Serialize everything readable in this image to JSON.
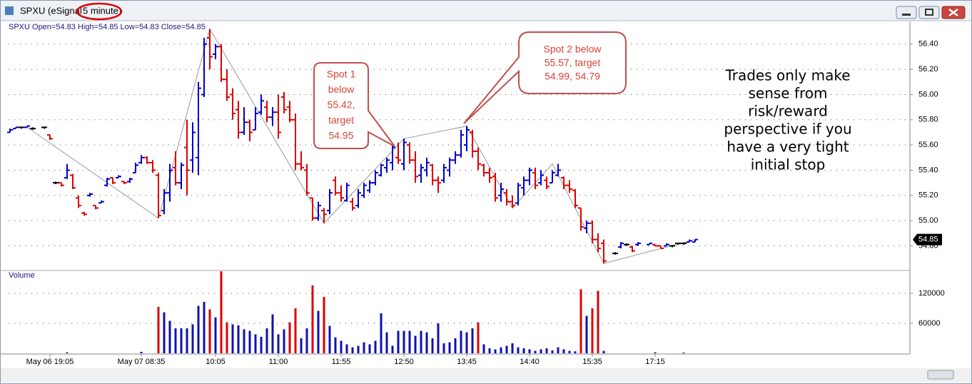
{
  "window": {
    "title": "SPXU (eSignal",
    "title_highlight": "5 minute)"
  },
  "annotations": {
    "spot1": [
      "Spot 1",
      "below",
      "55.42,",
      "target",
      "54.95"
    ],
    "spot2": [
      "Spot 2 below",
      "55.57, target",
      "54.99, 54.79"
    ],
    "note": [
      "Trades only make",
      "sense from",
      "risk/reward",
      "perspective if you",
      "have a very tight",
      "initial stop"
    ]
  },
  "chart_data": [
    {
      "type": "ohlc",
      "header": "SPXU  Open=54.83  High=54.85  Low=54.83  Close=54.85",
      "categories": [
        null,
        null,
        null,
        null,
        null,
        null,
        null,
        "May 06 19:05",
        null,
        null,
        null,
        null,
        null,
        null,
        null,
        null,
        null,
        null,
        null,
        null,
        null,
        null,
        null,
        "May 07 08:35",
        null,
        null,
        null,
        null,
        null,
        null,
        null,
        null,
        null,
        null,
        null,
        null,
        "10:05",
        null,
        null,
        null,
        null,
        null,
        null,
        null,
        null,
        null,
        null,
        "11:00",
        null,
        null,
        null,
        null,
        null,
        null,
        null,
        null,
        null,
        null,
        "11:55",
        null,
        null,
        null,
        null,
        null,
        null,
        null,
        null,
        null,
        null,
        "12:50",
        null,
        null,
        null,
        null,
        null,
        null,
        null,
        null,
        null,
        null,
        "13:45",
        null,
        null,
        null,
        null,
        null,
        null,
        null,
        null,
        null,
        null,
        "14:40",
        null,
        null,
        null,
        null,
        null,
        null,
        null,
        null,
        null,
        null,
        "15:35",
        null,
        null,
        null,
        null,
        null,
        null,
        null,
        null,
        null,
        null,
        "17:15",
        null,
        null,
        null,
        null,
        null,
        null,
        null
      ],
      "open": [
        55.7,
        55.73,
        55.74,
        55.74,
        55.73,
        null,
        55.74,
        55.68,
        55.3,
        55.3,
        55.34,
        55.36,
        55.18,
        55.06,
        55.2,
        55.12,
        55.14,
        55.28,
        55.34,
        55.34,
        55.31,
        55.31,
        55.38,
        55.46,
        55.5,
        55.46,
        55.36,
        55.08,
        55.22,
        55.42,
        55.3,
        55.58,
        55.48,
        55.5,
        56.0,
        56.45,
        56.32,
        56.38,
        56.12,
        56.0,
        55.88,
        55.7,
        55.78,
        55.72,
        55.86,
        55.9,
        55.82,
        55.86,
        55.98,
        55.9,
        55.8,
        55.45,
        55.4,
        55.18,
        55.02,
        55.08,
        55.08,
        55.32,
        55.22,
        55.16,
        55.15,
        55.12,
        55.2,
        55.24,
        55.3,
        55.36,
        55.42,
        55.46,
        55.5,
        55.45,
        55.6,
        55.48,
        55.36,
        55.4,
        55.44,
        55.32,
        55.32,
        55.4,
        55.48,
        55.52,
        55.6,
        55.7,
        55.55,
        55.44,
        55.38,
        55.35,
        55.2,
        55.22,
        55.15,
        55.14,
        55.26,
        55.32,
        55.38,
        55.3,
        55.32,
        55.3,
        55.36,
        55.34,
        55.28,
        55.24,
        55.1,
        54.94,
        54.98,
        54.85,
        54.82,
        null,
        54.74,
        54.79,
        54.81,
        54.79,
        54.81,
        null,
        54.81,
        54.81,
        54.8,
        54.8,
        54.8,
        54.82,
        54.82,
        54.83,
        54.83
      ],
      "high": [
        55.73,
        55.74,
        55.74,
        55.75,
        55.74,
        null,
        55.74,
        55.68,
        55.31,
        55.3,
        55.45,
        55.37,
        55.2,
        55.07,
        55.22,
        55.12,
        55.16,
        55.34,
        55.34,
        55.36,
        55.31,
        55.34,
        55.46,
        55.52,
        55.51,
        55.48,
        55.38,
        55.25,
        55.45,
        55.55,
        55.46,
        55.8,
        55.78,
        56.1,
        56.45,
        56.52,
        56.4,
        56.4,
        56.2,
        56.05,
        55.95,
        55.9,
        55.8,
        55.9,
        56.0,
        55.95,
        55.9,
        56.0,
        56.02,
        55.95,
        55.85,
        55.55,
        55.45,
        55.18,
        55.15,
        55.1,
        55.25,
        55.35,
        55.28,
        55.3,
        55.18,
        55.25,
        55.3,
        55.32,
        55.4,
        55.45,
        55.5,
        55.6,
        55.62,
        55.65,
        55.62,
        55.55,
        55.45,
        55.5,
        55.45,
        55.35,
        55.45,
        55.5,
        55.55,
        55.72,
        55.75,
        55.72,
        55.58,
        55.45,
        55.42,
        55.38,
        55.3,
        55.25,
        55.2,
        55.3,
        55.35,
        55.42,
        55.42,
        55.4,
        55.35,
        55.4,
        55.45,
        55.35,
        55.32,
        55.25,
        55.1,
        55.0,
        55.0,
        54.9,
        54.85,
        null,
        54.75,
        54.83,
        54.82,
        54.8,
        54.83,
        null,
        54.82,
        54.81,
        54.8,
        54.82,
        54.8,
        54.82,
        54.82,
        54.85,
        54.85
      ],
      "low": [
        55.7,
        55.73,
        55.74,
        55.74,
        55.72,
        null,
        55.74,
        55.64,
        55.29,
        55.27,
        55.33,
        55.25,
        55.1,
        55.04,
        55.19,
        55.09,
        55.14,
        55.27,
        55.29,
        55.34,
        55.29,
        55.3,
        55.38,
        55.45,
        55.45,
        55.38,
        55.02,
        55.05,
        55.15,
        55.28,
        55.25,
        55.2,
        55.38,
        55.36,
        55.98,
        56.2,
        56.28,
        56.1,
        55.95,
        55.8,
        55.65,
        55.68,
        55.63,
        55.72,
        55.84,
        55.78,
        55.75,
        55.65,
        55.85,
        55.78,
        55.4,
        55.4,
        55.2,
        55.0,
        55.0,
        54.98,
        55.05,
        55.2,
        55.15,
        55.15,
        55.08,
        55.1,
        55.18,
        55.22,
        55.28,
        55.35,
        55.38,
        55.4,
        55.45,
        55.4,
        55.45,
        55.3,
        55.3,
        55.35,
        55.28,
        55.22,
        55.3,
        55.35,
        55.45,
        55.5,
        55.55,
        55.5,
        55.4,
        55.35,
        55.3,
        55.15,
        55.15,
        55.12,
        55.1,
        55.12,
        55.2,
        55.28,
        55.25,
        55.28,
        55.25,
        55.3,
        55.35,
        55.25,
        55.22,
        55.1,
        54.92,
        54.9,
        54.82,
        54.75,
        54.66,
        null,
        54.73,
        54.78,
        54.8,
        54.75,
        54.8,
        null,
        54.81,
        54.8,
        54.78,
        54.8,
        54.8,
        54.82,
        54.82,
        54.83,
        54.83
      ],
      "close": [
        55.72,
        55.74,
        55.74,
        55.75,
        55.73,
        null,
        55.74,
        55.65,
        55.3,
        55.28,
        55.4,
        55.26,
        55.12,
        55.05,
        55.21,
        55.1,
        55.15,
        55.33,
        55.3,
        55.35,
        55.3,
        55.33,
        55.44,
        55.5,
        55.46,
        55.4,
        55.04,
        55.22,
        55.4,
        55.3,
        55.44,
        55.4,
        55.7,
        56.05,
        56.4,
        56.3,
        56.38,
        56.12,
        55.98,
        55.85,
        55.7,
        55.78,
        55.7,
        55.85,
        55.95,
        55.82,
        55.86,
        55.7,
        55.88,
        55.8,
        55.45,
        55.42,
        55.22,
        55.02,
        55.12,
        55.05,
        55.22,
        55.22,
        55.18,
        55.28,
        55.1,
        55.22,
        55.28,
        55.3,
        55.38,
        55.44,
        55.48,
        55.58,
        55.48,
        55.62,
        55.48,
        55.35,
        55.42,
        55.46,
        55.32,
        55.3,
        55.42,
        55.48,
        55.52,
        55.68,
        55.72,
        55.55,
        55.45,
        55.38,
        55.34,
        55.18,
        55.25,
        55.15,
        55.12,
        55.28,
        55.32,
        55.4,
        55.28,
        55.36,
        55.27,
        55.38,
        55.4,
        55.28,
        55.25,
        55.12,
        54.95,
        54.98,
        54.85,
        54.78,
        54.68,
        null,
        54.74,
        54.82,
        54.81,
        54.76,
        54.82,
        null,
        54.82,
        54.8,
        54.78,
        54.81,
        54.8,
        54.82,
        54.82,
        54.84,
        54.85
      ],
      "up_color": "#0000cc",
      "down_color": "#dd0000",
      "flat_color": "#000000",
      "ylim": [
        54.61,
        56.58
      ],
      "yticks": [
        {
          "value": 54.8,
          "label": "54.80"
        },
        {
          "value": 55.0,
          "label": "55.00"
        },
        {
          "value": 55.2,
          "label": "55.20"
        },
        {
          "value": 55.4,
          "label": "55.40"
        },
        {
          "value": 55.6,
          "label": "55.60"
        },
        {
          "value": 55.8,
          "label": "55.80"
        },
        {
          "value": 56.0,
          "label": "56.00"
        },
        {
          "value": 56.2,
          "label": "56.20"
        },
        {
          "value": 56.4,
          "label": "56.40"
        }
      ],
      "grid": true,
      "last_value": 54.85,
      "zigzag": {
        "x": [
          3,
          26,
          35,
          55,
          69,
          80,
          88,
          95,
          104,
          120
        ],
        "values": [
          55.74,
          55.02,
          56.52,
          54.98,
          55.65,
          55.75,
          55.1,
          55.45,
          54.66,
          54.85
        ],
        "color": "#999999"
      }
    },
    {
      "type": "bar",
      "title": "Volume",
      "color": "#1010b0",
      "values": [
        null,
        null,
        null,
        null,
        null,
        null,
        null,
        null,
        null,
        null,
        2000,
        null,
        null,
        null,
        null,
        null,
        null,
        null,
        null,
        null,
        null,
        null,
        null,
        3000,
        null,
        null,
        93000,
        82000,
        65000,
        50000,
        50000,
        50000,
        58000,
        95000,
        103000,
        88000,
        72000,
        164000,
        62000,
        58000,
        56000,
        48000,
        45000,
        38000,
        33000,
        50000,
        78000,
        38000,
        48000,
        62000,
        90000,
        30000,
        50000,
        136000,
        85000,
        113000,
        55000,
        32000,
        25000,
        18000,
        12000,
        15000,
        22000,
        18000,
        25000,
        80000,
        42000,
        15000,
        45000,
        45000,
        45000,
        35000,
        45000,
        42000,
        30000,
        60000,
        20000,
        22000,
        30000,
        45000,
        42000,
        50000,
        62000,
        18000,
        10000,
        8000,
        12000,
        15000,
        20000,
        12000,
        10000,
        8000,
        5000,
        8000,
        10000,
        6000,
        12000,
        8000,
        5000,
        4000,
        128000,
        75000,
        90000,
        125000,
        5000,
        null,
        null,
        null,
        null,
        null,
        null,
        null,
        null,
        2000,
        null,
        null,
        null,
        null,
        1500,
        null,
        null
      ],
      "ylim": [
        0,
        165000
      ],
      "yticks": [
        60000,
        120000
      ],
      "grid": true
    }
  ]
}
